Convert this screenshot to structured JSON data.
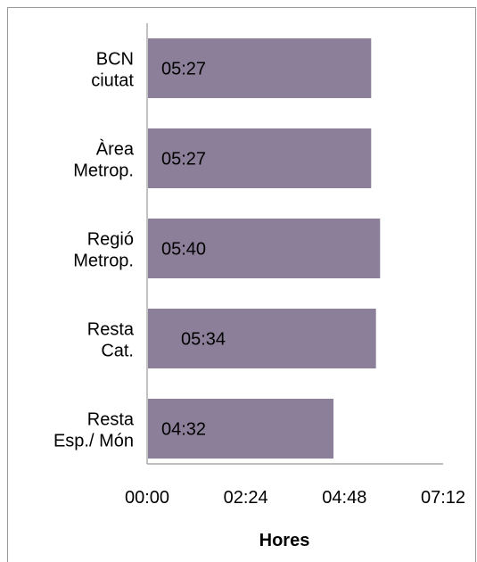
{
  "chart_data": {
    "type": "bar",
    "orientation": "horizontal",
    "categories": [
      [
        "BCN",
        "ciutat"
      ],
      [
        "Àrea",
        "Metrop."
      ],
      [
        "Regió",
        "Metrop."
      ],
      [
        "Resta",
        "Cat."
      ],
      [
        "Resta",
        "Esp./ Món"
      ]
    ],
    "values_minutes": [
      327,
      327,
      340,
      334,
      272
    ],
    "data_labels": [
      "05:27",
      "05:27",
      "05:40",
      "05:34",
      "04:32"
    ],
    "x_ticks_minutes": [
      0,
      144,
      288,
      432
    ],
    "x_tick_labels": [
      "00:00",
      "02:24",
      "04:48",
      "07:12"
    ],
    "xlim_minutes": [
      0,
      432
    ],
    "xlabel": "Hores",
    "ylabel": "",
    "title": "",
    "grid": false,
    "legend": "none",
    "colors": {
      "bar": "#8c7f99",
      "axis": "#999999",
      "text": "#000000"
    }
  }
}
